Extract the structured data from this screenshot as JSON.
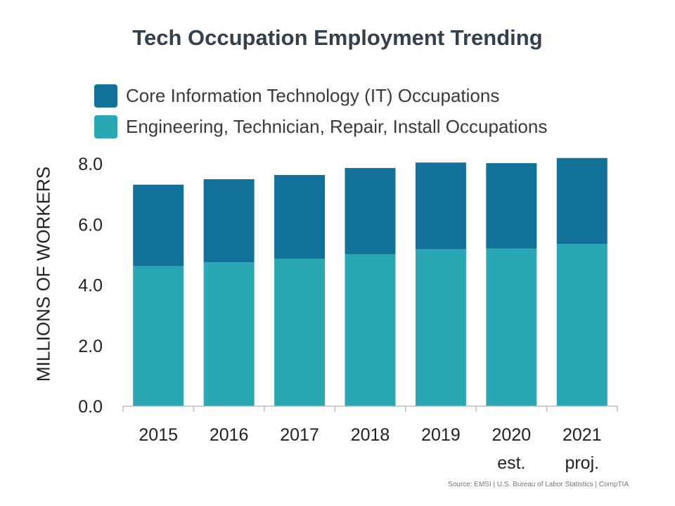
{
  "chart_data": {
    "type": "bar",
    "stacked": true,
    "title": "Tech Occupation Employment Trending",
    "ylabel": "MILLIONS OF WORKERS",
    "xlabel": "",
    "ylim": [
      0,
      8
    ],
    "yticks": [
      "0.0",
      "2.0",
      "4.0",
      "6.0",
      "8.0"
    ],
    "categories": [
      [
        "2015"
      ],
      [
        "2016"
      ],
      [
        "2017"
      ],
      [
        "2018"
      ],
      [
        "2019"
      ],
      [
        "2020",
        "est."
      ],
      [
        "2021",
        "proj."
      ]
    ],
    "series": [
      {
        "name": "Engineering, Technician, Repair, Install Occupations",
        "color": "#29a8b3",
        "values": [
          4.62,
          4.75,
          4.87,
          5.02,
          5.18,
          5.2,
          5.35
        ]
      },
      {
        "name": "Core Information Technology (IT) Occupations",
        "color": "#127198",
        "values": [
          2.69,
          2.74,
          2.76,
          2.84,
          2.86,
          2.82,
          2.84
        ]
      }
    ],
    "legend": [
      {
        "label": "Core Information Technology (IT) Occupations",
        "color": "#127198"
      },
      {
        "label": "Engineering, Technician, Repair, Install Occupations",
        "color": "#29a8b3"
      }
    ],
    "grid": false
  },
  "source": "Source: EMSI  |  U.S. Bureau of Labor Statistics  |  CompTIA"
}
